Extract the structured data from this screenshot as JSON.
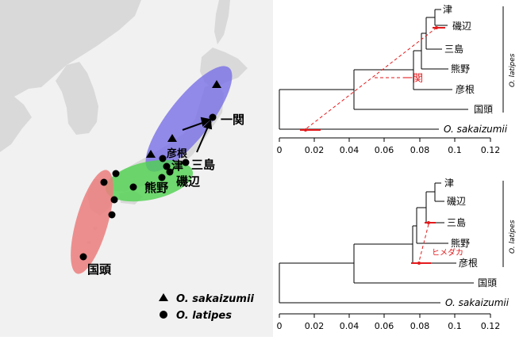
{
  "map": {
    "places": {
      "ichinoseki": "一関",
      "hikone": "彦根",
      "tsu": "津",
      "mishima": "三島",
      "kumano": "熊野",
      "isobe": "磯辺",
      "kunigami": "国頭"
    },
    "legend": [
      {
        "symbol": "triangle",
        "label": "O. sakaizumii"
      },
      {
        "symbol": "circle",
        "label": "O. latipes"
      }
    ],
    "colors": {
      "blue_region": "#7b73e6",
      "green_region": "#4fd24f",
      "red_region": "#ec7c7c",
      "land": "#d9d9d9",
      "sea": "#f2f2f2"
    }
  },
  "tree_top": {
    "tips": [
      "津",
      "磯辺",
      "三島",
      "熊野",
      "彦根",
      "国頭",
      "O. sakaizumii"
    ],
    "annotation": "一関",
    "clade_label": "O. latipes",
    "axis": {
      "ticks": [
        "0",
        "0.02",
        "0.04",
        "0.06",
        "0.08",
        "0.1",
        "0.12"
      ]
    }
  },
  "tree_bottom": {
    "tips": [
      "津",
      "磯辺",
      "三島",
      "熊野",
      "彦根",
      "国頭",
      "O. sakaizumii"
    ],
    "annotation": "ヒメダカ",
    "clade_label": "O. latipes",
    "axis": {
      "ticks": [
        "0",
        "0.02",
        "0.04",
        "0.06",
        "0.08",
        "0.1",
        "0.12"
      ]
    }
  },
  "accent_color": "#e31a1c"
}
